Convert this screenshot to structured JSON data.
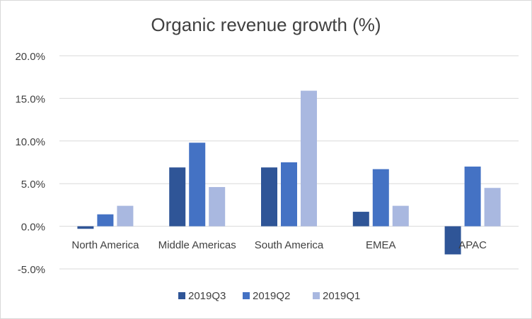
{
  "chart_data": {
    "type": "bar",
    "title": "Organic revenue growth (%)",
    "xlabel": "",
    "ylabel": "",
    "categories": [
      "North America",
      "Middle Americas",
      "South America",
      "EMEA",
      "APAC"
    ],
    "series": [
      {
        "name": "2019Q3",
        "color": "#2f5597",
        "values": [
          -0.3,
          6.9,
          6.9,
          1.7,
          -3.3
        ]
      },
      {
        "name": "2019Q2",
        "color": "#4472c4",
        "values": [
          1.4,
          9.8,
          7.5,
          6.7,
          7.0
        ]
      },
      {
        "name": "2019Q1",
        "color": "#a9b8e0",
        "values": [
          2.4,
          4.6,
          15.9,
          2.4,
          4.5
        ]
      }
    ],
    "ylim": [
      -5,
      20
    ],
    "yticks": [
      {
        "value": -5,
        "label": "-5.0%"
      },
      {
        "value": 0,
        "label": "0.0%"
      },
      {
        "value": 5,
        "label": "5.0%"
      },
      {
        "value": 10,
        "label": "10.0%"
      },
      {
        "value": 15,
        "label": "15.0%"
      },
      {
        "value": 20,
        "label": "20.0%"
      }
    ],
    "grid": true,
    "legend_position": "bottom",
    "colors": {
      "grid": "#d9d9d9",
      "text": "#404040"
    }
  }
}
